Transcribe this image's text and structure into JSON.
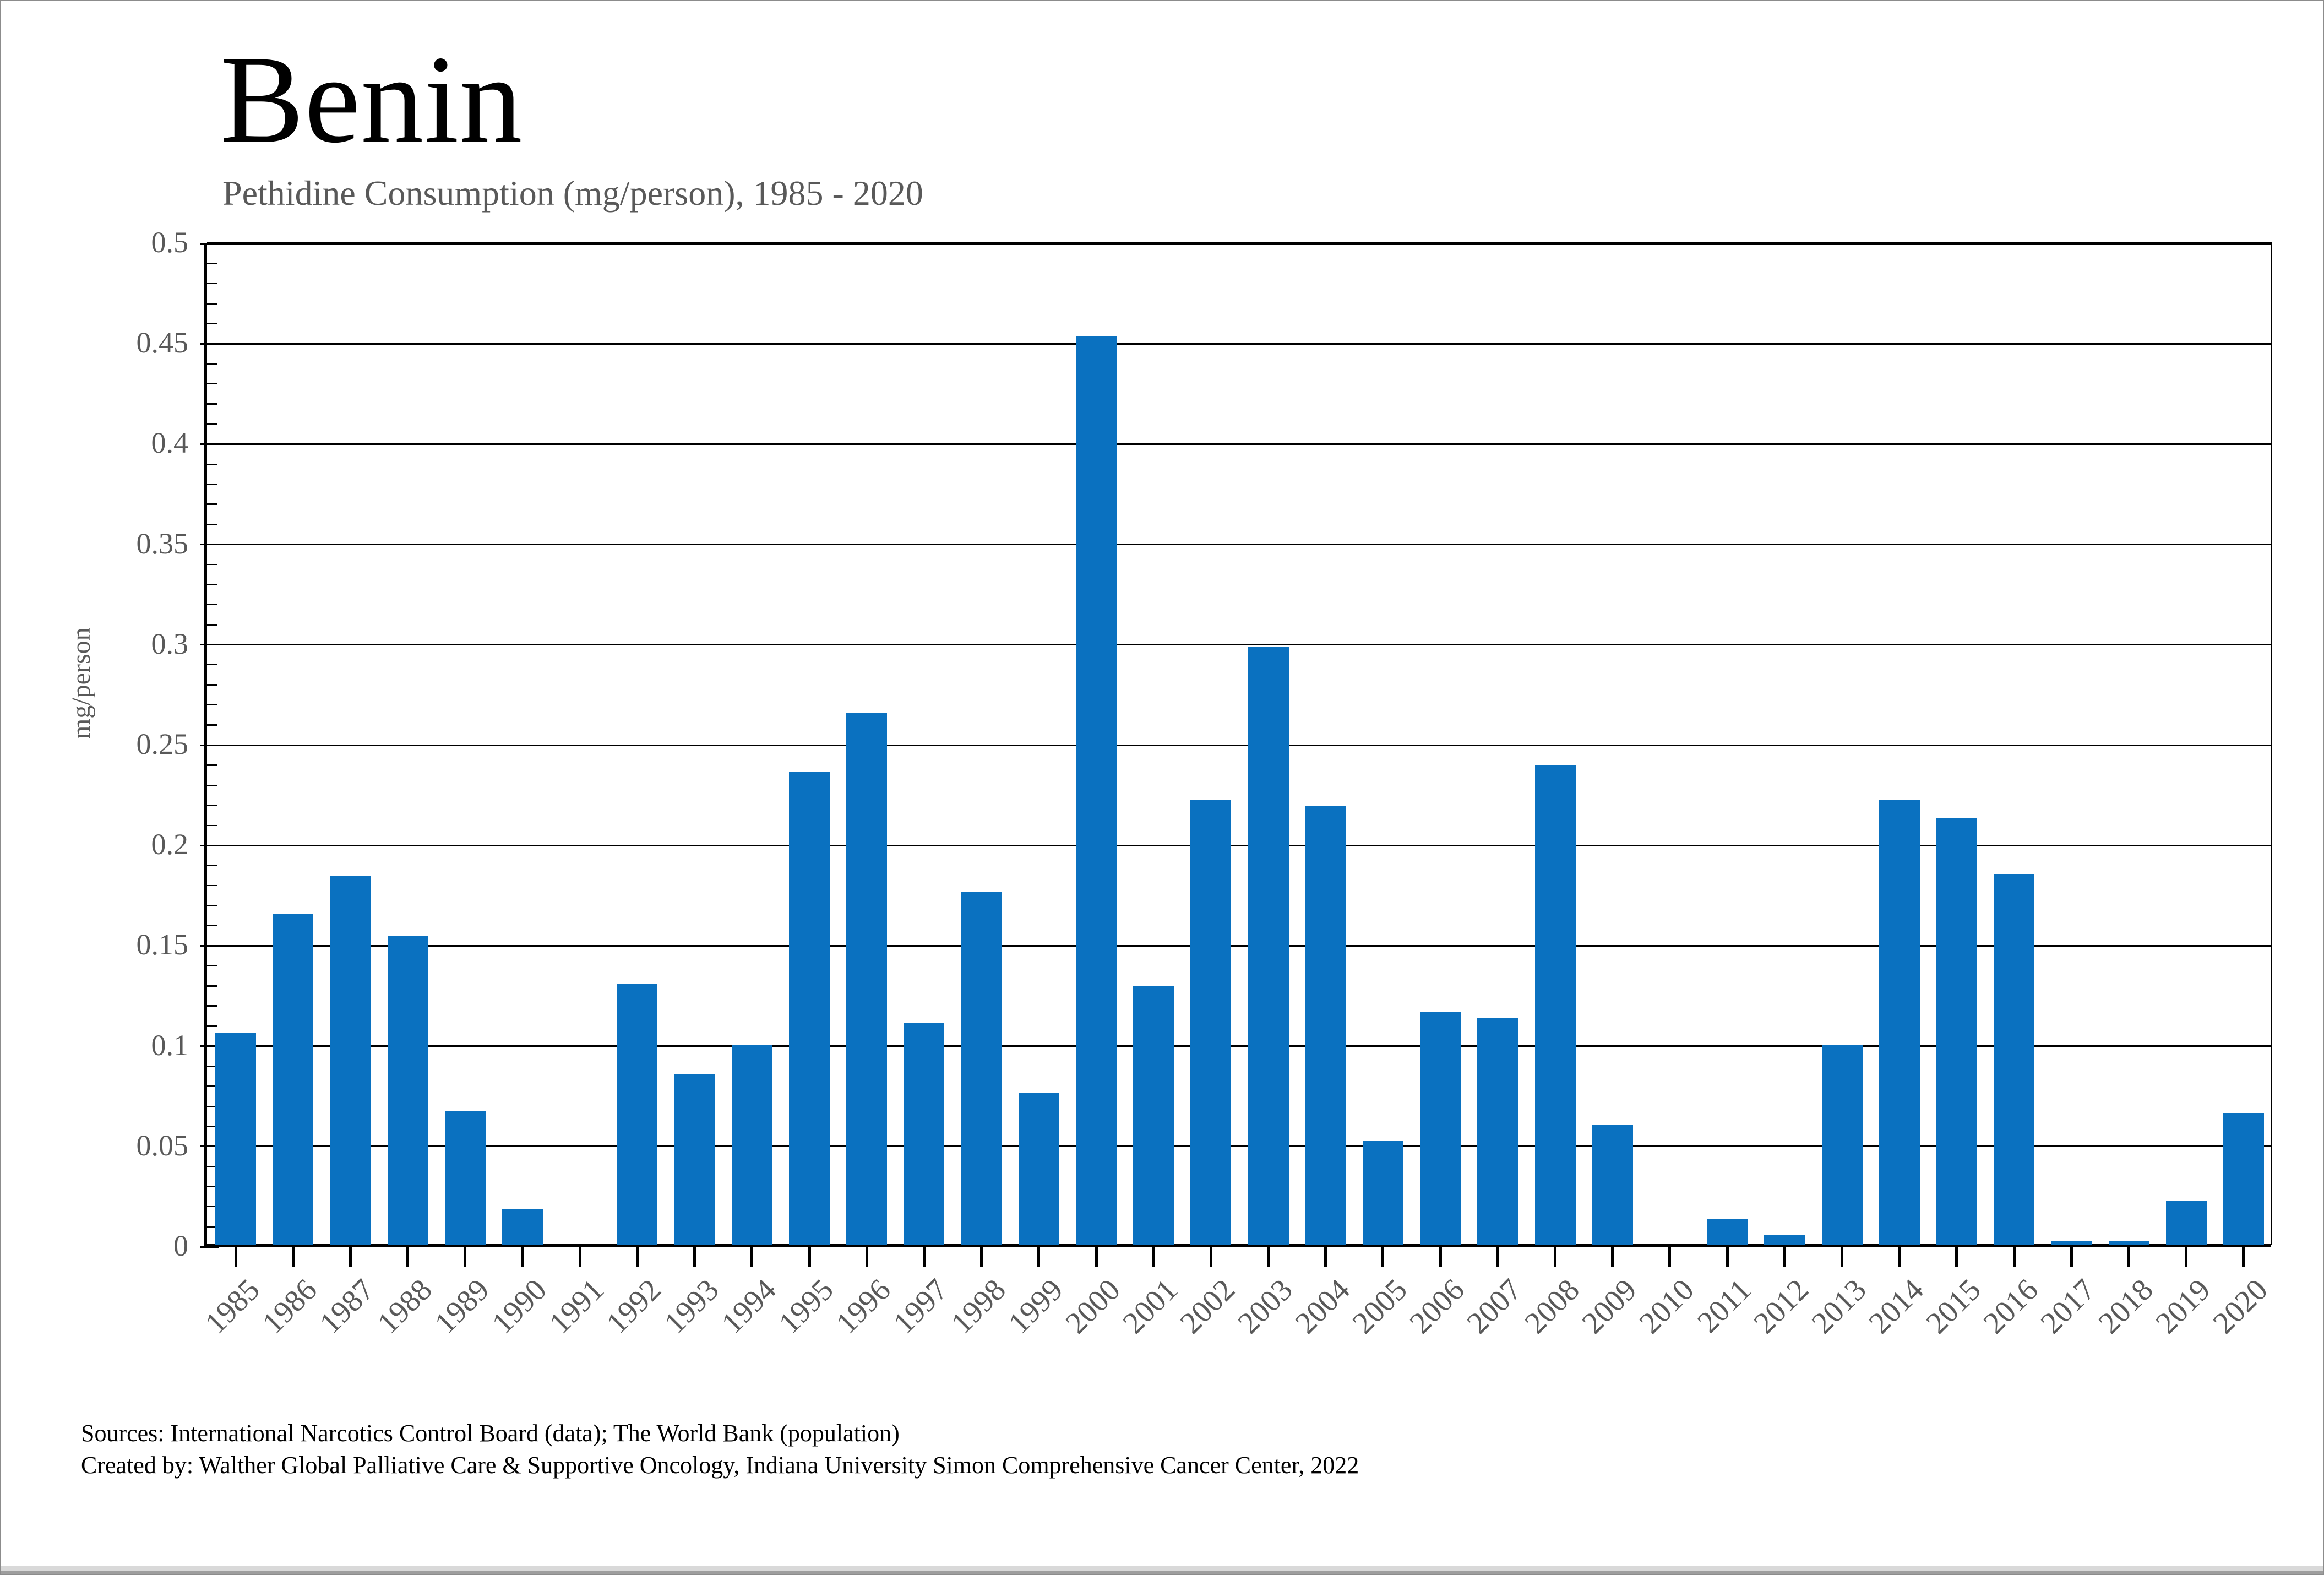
{
  "title": "Benin",
  "subtitle": "Pethidine Consumption (mg/person), 1985 - 2020",
  "y_axis_label": "mg/person",
  "footer": {
    "line1": "Sources: International Narcotics Control Board (data); The World Bank (population)",
    "line2": "Created by: Walther Global Palliative Care & Supportive Oncology, Indiana University Simon Comprehensive Cancer Center, 2022"
  },
  "colors": {
    "bar": "#0a71c0",
    "grid": "#000000",
    "axis": "#000000",
    "tick_label": "#595959",
    "subtitle": "#595959"
  },
  "chart_data": {
    "type": "bar",
    "title": "Benin",
    "subtitle": "Pethidine Consumption (mg/person), 1985 - 2020",
    "xlabel": "",
    "ylabel": "mg/person",
    "ylim": [
      0,
      0.5
    ],
    "y_tick_step": 0.05,
    "y_minor_tick_step": 0.01,
    "grid": "horizontal",
    "legend_position": "none",
    "y_tick_labels": [
      "0",
      "0.05",
      "0.1",
      "0.15",
      "0.2",
      "0.25",
      "0.3",
      "0.35",
      "0.4",
      "0.45",
      "0.5"
    ],
    "categories": [
      "1985",
      "1986",
      "1987",
      "1988",
      "1989",
      "1990",
      "1991",
      "1992",
      "1993",
      "1994",
      "1995",
      "1996",
      "1997",
      "1998",
      "1999",
      "2000",
      "2001",
      "2002",
      "2003",
      "2004",
      "2005",
      "2006",
      "2007",
      "2008",
      "2009",
      "2010",
      "2011",
      "2012",
      "2013",
      "2014",
      "2015",
      "2016",
      "2017",
      "2018",
      "2019",
      "2020"
    ],
    "values": [
      0.106,
      0.165,
      0.184,
      0.154,
      0.067,
      0.018,
      0,
      0.13,
      0.085,
      0.1,
      0.236,
      0.265,
      0.111,
      0.176,
      0.076,
      0.453,
      0.129,
      0.222,
      0.298,
      0.219,
      0.052,
      0.116,
      0.113,
      0.239,
      0.06,
      0,
      0.013,
      0.005,
      0.1,
      0.222,
      0.213,
      0.185,
      0.002,
      0.002,
      0.022,
      0.066
    ]
  }
}
